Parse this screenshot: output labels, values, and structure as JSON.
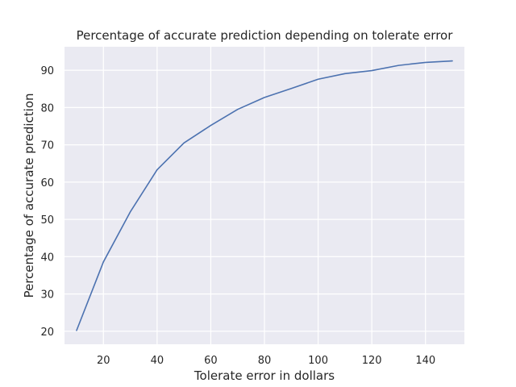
{
  "chart_data": {
    "type": "line",
    "title": "Percentage of accurate prediction depending on tolerate error",
    "xlabel": "Tolerate error in dollars",
    "ylabel": "Percentage of accurate prediction",
    "xlim": [
      5.5,
      154.5
    ],
    "ylim": [
      16.5,
      96.3
    ],
    "x_ticks": [
      20,
      40,
      60,
      80,
      100,
      120,
      140
    ],
    "y_ticks": [
      20,
      30,
      40,
      50,
      60,
      70,
      80,
      90
    ],
    "x_tick_labels": [
      "20",
      "40",
      "60",
      "80",
      "100",
      "120",
      "140"
    ],
    "y_tick_labels": [
      "20",
      "30",
      "40",
      "50",
      "60",
      "70",
      "80",
      "90"
    ],
    "grid": true,
    "background": "#eaeaf2",
    "series": [
      {
        "color": "#4c72b0",
        "x": [
          10,
          20,
          30,
          40,
          50,
          60,
          70,
          80,
          90,
          100,
          110,
          120,
          130,
          140,
          150
        ],
        "y": [
          20.2,
          38.6,
          52.0,
          63.3,
          70.5,
          75.2,
          79.5,
          82.7,
          85.1,
          87.6,
          89.1,
          89.9,
          91.3,
          92.1,
          92.5
        ]
      }
    ]
  }
}
